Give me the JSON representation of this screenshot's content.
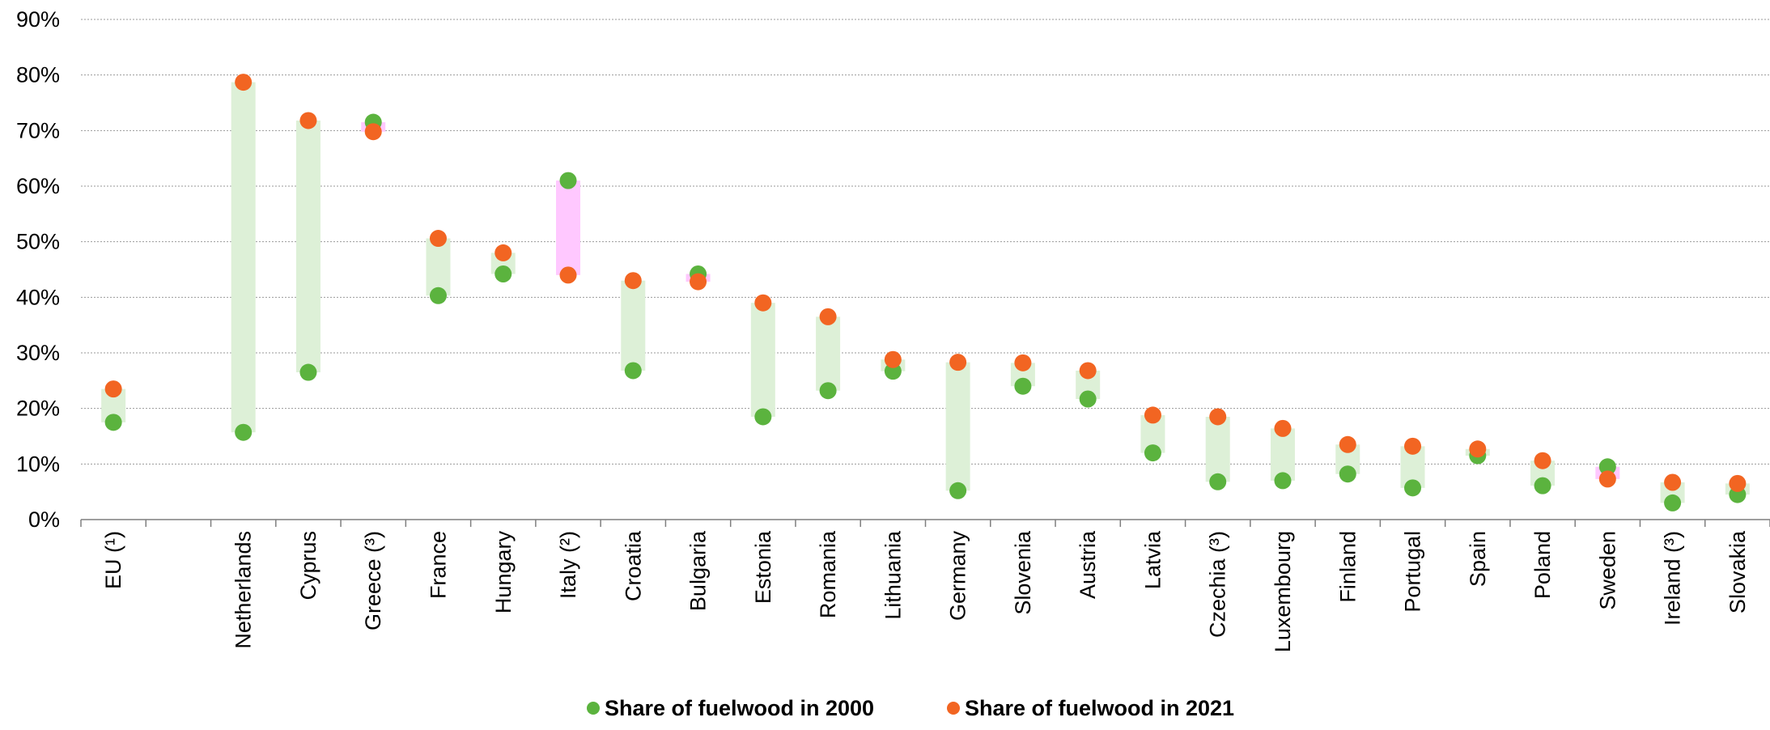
{
  "chart_data": {
    "type": "dot-range",
    "title": "",
    "xlabel": "",
    "ylabel": "",
    "ylim": [
      0,
      90
    ],
    "y_unit": "%",
    "y_ticks": [
      "0%",
      "10%",
      "20%",
      "30%",
      "40%",
      "50%",
      "60%",
      "70%",
      "80%",
      "90%"
    ],
    "grid": "horizontal dotted",
    "legend_position": "bottom",
    "categories": [
      "EU (¹)",
      "",
      "Netherlands",
      "Cyprus",
      "Greece (³)",
      "France",
      "Hungary",
      "Italy (²)",
      "Croatia",
      "Bulgaria",
      "Estonia",
      "Romania",
      "Lithuania",
      "Germany",
      "Slovenia",
      "Austria",
      "Latvia",
      "Czechia (³)",
      "Luxembourg",
      "Finland",
      "Portugal",
      "Spain",
      "Poland",
      "Sweden",
      "Ireland (³)",
      "Slovakia"
    ],
    "series": [
      {
        "name": "Share of fuelwood in 2000",
        "color": "#5BB33E",
        "values": [
          17.5,
          null,
          15.7,
          26.5,
          71.5,
          40.3,
          44.2,
          61.0,
          26.8,
          44.2,
          18.5,
          23.2,
          26.7,
          5.2,
          24.0,
          21.7,
          12.0,
          6.8,
          7.0,
          8.2,
          5.7,
          11.5,
          6.1,
          9.5,
          3.0,
          4.5
        ]
      },
      {
        "name": "Share of fuelwood in 2021",
        "color": "#F26522",
        "values": [
          23.5,
          null,
          78.7,
          71.8,
          69.8,
          50.6,
          48.0,
          44.0,
          43.0,
          42.8,
          39.0,
          36.5,
          28.8,
          28.3,
          28.2,
          26.8,
          18.8,
          18.5,
          16.4,
          13.5,
          13.2,
          12.7,
          10.6,
          7.3,
          6.7,
          6.5
        ]
      }
    ],
    "range_colors": {
      "increase": "#DDF0D7",
      "decrease": "#FFC8FF"
    }
  }
}
